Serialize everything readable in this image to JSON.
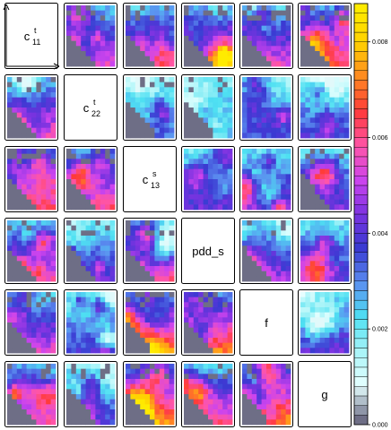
{
  "chart_data": {
    "type": "heatmap",
    "variables": [
      "c_11^t",
      "c_22^t",
      "c_13^s",
      "pdd_s",
      "f",
      "g"
    ],
    "diagonal_labels": [
      {
        "base": "c",
        "sup": "t",
        "sub": "11"
      },
      {
        "base": "c",
        "sup": "t",
        "sub": "22"
      },
      {
        "base": "c",
        "sup": "s",
        "sub": "13"
      },
      {
        "base": "pdd_s",
        "sup": "",
        "sub": ""
      },
      {
        "base": "f",
        "sup": "",
        "sub": ""
      },
      {
        "base": "g",
        "sup": "",
        "sub": ""
      }
    ],
    "colorbar": {
      "ticks": [
        0.0,
        0.002,
        0.004,
        0.006,
        0.008
      ],
      "tick_labels": [
        "0.000",
        "0.002",
        "0.004",
        "0.006",
        "0.008"
      ],
      "range": [
        0.0,
        0.0088
      ],
      "colors": [
        "#6e6e86",
        "#e6ffff",
        "#a8f4f8",
        "#4ee0f2",
        "#5b8ef0",
        "#3a3ad2",
        "#7a33e0",
        "#cc44ee",
        "#ff55a8",
        "#ff3a3a",
        "#ff8a22",
        "#ffd200",
        "#ffeb00"
      ],
      "n_levels": 44
    },
    "cells": [
      {
        "row": 0,
        "col": 1,
        "intensity": 0.55
      },
      {
        "row": 0,
        "col": 2,
        "intensity": 0.62
      },
      {
        "row": 0,
        "col": 3,
        "intensity": 0.66
      },
      {
        "row": 0,
        "col": 4,
        "intensity": 0.55
      },
      {
        "row": 0,
        "col": 5,
        "intensity": 0.68
      },
      {
        "row": 1,
        "col": 0,
        "intensity": 0.6
      },
      {
        "row": 1,
        "col": 2,
        "intensity": 0.3
      },
      {
        "row": 1,
        "col": 3,
        "intensity": 0.3
      },
      {
        "row": 1,
        "col": 4,
        "intensity": 0.3
      },
      {
        "row": 1,
        "col": 5,
        "intensity": 0.35
      },
      {
        "row": 2,
        "col": 0,
        "intensity": 0.6
      },
      {
        "row": 2,
        "col": 1,
        "intensity": 0.62
      },
      {
        "row": 2,
        "col": 3,
        "intensity": 0.4
      },
      {
        "row": 2,
        "col": 4,
        "intensity": 0.45
      },
      {
        "row": 2,
        "col": 5,
        "intensity": 0.42
      },
      {
        "row": 3,
        "col": 0,
        "intensity": 0.58
      },
      {
        "row": 3,
        "col": 1,
        "intensity": 0.4
      },
      {
        "row": 3,
        "col": 2,
        "intensity": 0.62
      },
      {
        "row": 3,
        "col": 4,
        "intensity": 0.5
      },
      {
        "row": 3,
        "col": 5,
        "intensity": 0.42
      },
      {
        "row": 4,
        "col": 0,
        "intensity": 0.55
      },
      {
        "row": 4,
        "col": 1,
        "intensity": 0.35
      },
      {
        "row": 4,
        "col": 2,
        "intensity": 0.78
      },
      {
        "row": 4,
        "col": 3,
        "intensity": 0.75
      },
      {
        "row": 4,
        "col": 5,
        "intensity": 0.4
      },
      {
        "row": 5,
        "col": 0,
        "intensity": 0.58
      },
      {
        "row": 5,
        "col": 1,
        "intensity": 0.35
      },
      {
        "row": 5,
        "col": 2,
        "intensity": 0.75
      },
      {
        "row": 5,
        "col": 3,
        "intensity": 0.62
      },
      {
        "row": 5,
        "col": 4,
        "intensity": 0.78
      }
    ]
  }
}
